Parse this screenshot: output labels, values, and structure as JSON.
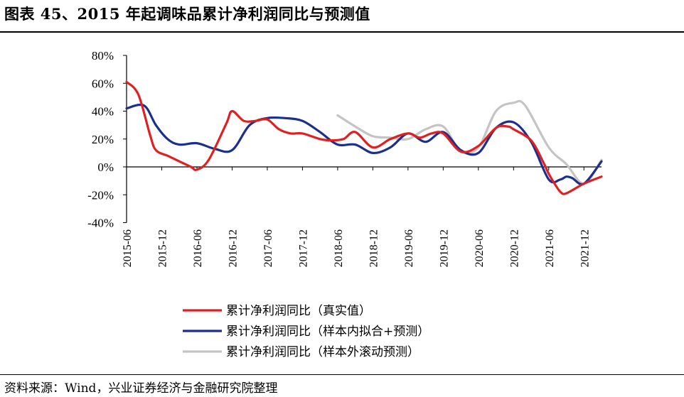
{
  "header": {
    "title": "图表 45、2015 年起调味品累计净利润同比与预测值"
  },
  "footer": {
    "source": "资料来源：Wind，兴业证券经济与金融研究院整理"
  },
  "chart_data": {
    "type": "line",
    "title": "",
    "xlabel": "",
    "ylabel": "",
    "ylim": [
      -40,
      80
    ],
    "y_unit": "%",
    "y_ticks": [
      "80%",
      "60%",
      "40%",
      "20%",
      "0%",
      "-20%",
      "-40%"
    ],
    "y_tick_values": [
      80,
      60,
      40,
      20,
      0,
      -20,
      -40
    ],
    "x_ticks": [
      "2015-06",
      "2015-12",
      "2016-06",
      "2016-12",
      "2017-06",
      "2017-12",
      "2018-06",
      "2018-12",
      "2019-06",
      "2019-12",
      "2020-06",
      "2020-12",
      "2021-06",
      "2021-12"
    ],
    "x_range": [
      "2015-06",
      "2022-03"
    ],
    "grid": false,
    "legend_position": "bottom",
    "series": [
      {
        "name": "累计净利润同比（真实值）",
        "color": "#e02020",
        "points": [
          [
            "2015-06",
            61
          ],
          [
            "2015-08",
            52
          ],
          [
            "2015-10",
            23
          ],
          [
            "2015-11",
            12
          ],
          [
            "2016-01",
            8
          ],
          [
            "2016-03",
            4
          ],
          [
            "2016-05",
            0
          ],
          [
            "2016-06",
            -2
          ],
          [
            "2016-08",
            5
          ],
          [
            "2016-11",
            31
          ],
          [
            "2016-12",
            40
          ],
          [
            "2017-02",
            33
          ],
          [
            "2017-04",
            33
          ],
          [
            "2017-06",
            34
          ],
          [
            "2017-08",
            27
          ],
          [
            "2017-10",
            24
          ],
          [
            "2017-12",
            24
          ],
          [
            "2018-03",
            20
          ],
          [
            "2018-05",
            19
          ],
          [
            "2018-07",
            20
          ],
          [
            "2018-09",
            25
          ],
          [
            "2018-12",
            14
          ],
          [
            "2019-03",
            20
          ],
          [
            "2019-06",
            24
          ],
          [
            "2019-08",
            21
          ],
          [
            "2019-10",
            24
          ],
          [
            "2019-12",
            24
          ],
          [
            "2020-03",
            11
          ],
          [
            "2020-06",
            15
          ],
          [
            "2020-09",
            28
          ],
          [
            "2020-11",
            29
          ],
          [
            "2020-12",
            27
          ],
          [
            "2021-03",
            19
          ],
          [
            "2021-05",
            4
          ],
          [
            "2021-06",
            -5
          ],
          [
            "2021-07",
            -12
          ],
          [
            "2021-08",
            -18
          ],
          [
            "2021-09",
            -19
          ],
          [
            "2021-12",
            -12
          ],
          [
            "2022-03",
            -7
          ]
        ]
      },
      {
        "name": "累计净利润同比（样本内拟合+预测）",
        "color": "#1c2f8c",
        "points": [
          [
            "2015-06",
            42
          ],
          [
            "2015-09",
            44
          ],
          [
            "2015-11",
            30
          ],
          [
            "2016-01",
            20
          ],
          [
            "2016-03",
            16
          ],
          [
            "2016-06",
            17
          ],
          [
            "2016-09",
            13
          ],
          [
            "2016-12",
            12
          ],
          [
            "2017-03",
            30
          ],
          [
            "2017-06",
            35
          ],
          [
            "2017-09",
            35
          ],
          [
            "2017-12",
            33
          ],
          [
            "2018-03",
            25
          ],
          [
            "2018-06",
            16
          ],
          [
            "2018-09",
            16
          ],
          [
            "2018-12",
            10
          ],
          [
            "2019-03",
            14
          ],
          [
            "2019-06",
            24
          ],
          [
            "2019-09",
            18
          ],
          [
            "2019-12",
            25
          ],
          [
            "2020-03",
            12
          ],
          [
            "2020-06",
            10
          ],
          [
            "2020-09",
            28
          ],
          [
            "2020-12",
            32
          ],
          [
            "2021-03",
            18
          ],
          [
            "2021-06",
            -9
          ],
          [
            "2021-08",
            -9
          ],
          [
            "2021-09",
            -7
          ],
          [
            "2021-10",
            -8
          ],
          [
            "2021-12",
            -12
          ],
          [
            "2022-03",
            4
          ]
        ]
      },
      {
        "name": "累计净利润同比（样本外滚动预测）",
        "color": "#c4c4c4",
        "points": [
          [
            "2018-06",
            37
          ],
          [
            "2018-09",
            29
          ],
          [
            "2018-12",
            22
          ],
          [
            "2019-03",
            21
          ],
          [
            "2019-06",
            20
          ],
          [
            "2019-09",
            27
          ],
          [
            "2019-12",
            29
          ],
          [
            "2020-03",
            11
          ],
          [
            "2020-06",
            14
          ],
          [
            "2020-09",
            40
          ],
          [
            "2020-12",
            46
          ],
          [
            "2021-02",
            44
          ],
          [
            "2021-06",
            14
          ],
          [
            "2021-09",
            2
          ],
          [
            "2021-12",
            -12
          ],
          [
            "2022-03",
            5
          ]
        ]
      }
    ]
  }
}
